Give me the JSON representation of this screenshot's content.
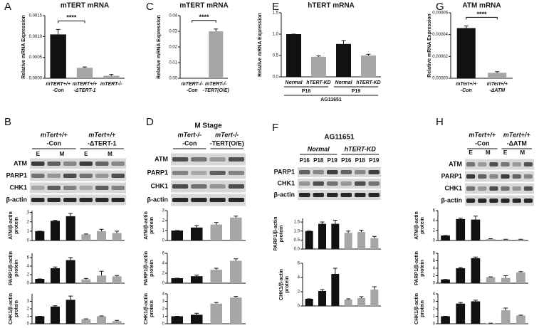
{
  "chart_data": [
    {
      "letter": "A",
      "type": "bar",
      "title": "mTERT mRNA",
      "ylabel": [
        "Relative mRNA Expression"
      ],
      "categories": [
        [
          "mTERT+/+",
          "-Con"
        ],
        [
          "mTERT+/+",
          "-ΔTERT-1"
        ],
        [
          "mTERT-/-"
        ]
      ],
      "values": [
        0.00105,
        0.00025,
        6e-05
      ],
      "errors": [
        0.00012,
        2e-05,
        3e-05
      ],
      "colors": [
        "#111111",
        "#a6a6a6",
        "#a6a6a6"
      ],
      "ylim": [
        0,
        0.0015
      ],
      "yticks": [
        {
          "value": 0,
          "label": "0.0000"
        },
        {
          "value": 0.0005,
          "label": "0.0005"
        },
        {
          "value": 0.001,
          "label": "0.0010"
        },
        {
          "value": 0.0015,
          "label": "0.0015"
        }
      ],
      "annotation": "****"
    },
    {
      "letter": "C",
      "type": "bar",
      "title": "mTERT mRNA",
      "ylabel": [
        "Relative mRNA Expression"
      ],
      "categories": [
        [
          "mTERT-/-",
          "-Con"
        ],
        [
          "mTERT-/-",
          "-TERT(O/E)"
        ]
      ],
      "values": [
        0,
        0.03
      ],
      "errors": [
        0,
        0.0015
      ],
      "colors": [
        "#111111",
        "#a6a6a6"
      ],
      "ylim": [
        0,
        0.04
      ],
      "yticks": [
        {
          "value": 0,
          "label": "0.00"
        },
        {
          "value": 0.01,
          "label": "0.01"
        },
        {
          "value": 0.02,
          "label": "0.02"
        },
        {
          "value": 0.03,
          "label": "0.03"
        },
        {
          "value": 0.04,
          "label": "0.04"
        }
      ],
      "annotation": "****"
    },
    {
      "letter": "E",
      "type": "bar",
      "title": "hTERT mRNA",
      "ylabel": [
        "Relative mRNA Expression"
      ],
      "categories": [
        [
          "Normal"
        ],
        [
          "hTERT-KD"
        ],
        [
          "Normal"
        ],
        [
          "hTERT-KD"
        ]
      ],
      "groups": [
        "P16",
        "P19"
      ],
      "group_title": "AG11651",
      "values": [
        1.0,
        0.47,
        0.77,
        0.5
      ],
      "errors": [
        0,
        0.02,
        0.08,
        0.03
      ],
      "colors": [
        "#111111",
        "#a6a6a6",
        "#111111",
        "#a6a6a6"
      ],
      "ylim": [
        0,
        1.5
      ],
      "yticks": [
        {
          "value": 0,
          "label": "0.0"
        },
        {
          "value": 0.5,
          "label": "0.5"
        },
        {
          "value": 1,
          "label": "1.0"
        },
        {
          "value": 1.5,
          "label": "1.5"
        }
      ]
    },
    {
      "letter": "G",
      "type": "bar",
      "title": "ATM mRNA",
      "ylabel": [
        "Relative mRNA Expression"
      ],
      "categories": [
        [
          "mTert+/+",
          "-Con"
        ],
        [
          "mTert+/+",
          "-ΔATM"
        ]
      ],
      "values": [
        4.6e-05,
        5e-06
      ],
      "errors": [
        2e-06,
        1e-06
      ],
      "colors": [
        "#111111",
        "#a6a6a6"
      ],
      "ylim": [
        0,
        6e-05
      ],
      "yticks": [
        {
          "value": 0,
          "label": "0.00000"
        },
        {
          "value": 2e-05,
          "label": "0.00002"
        },
        {
          "value": 4e-05,
          "label": "0.00004"
        },
        {
          "value": 6e-05,
          "label": "0.00006"
        }
      ],
      "annotation": "****"
    },
    {
      "type": "bar",
      "ylabel": [
        "ATM/β-actin",
        "protein"
      ],
      "values": [
        1,
        2.1,
        2.6,
        0.65,
        1.0,
        0.8
      ],
      "errors": [
        0,
        0.05,
        0.3,
        0.05,
        0.2,
        0.2
      ],
      "colors": [
        "#111111",
        "#111111",
        "#111111",
        "#a6a6a6",
        "#a6a6a6",
        "#a6a6a6"
      ],
      "ylim": [
        0,
        3.2
      ],
      "yticks": [
        0,
        1,
        2,
        3
      ]
    },
    {
      "type": "bar",
      "ylabel": [
        "PARP1/β-actin",
        "protein"
      ],
      "values": [
        1,
        3.5,
        5.4,
        0.9,
        1.8,
        1.6
      ],
      "errors": [
        0,
        0.3,
        0.6,
        0.2,
        1.0,
        0.2
      ],
      "colors": [
        "#111111",
        "#111111",
        "#111111",
        "#a6a6a6",
        "#a6a6a6",
        "#a6a6a6"
      ],
      "ylim": [
        0,
        7
      ],
      "yticks": [
        0,
        2,
        4,
        6
      ]
    },
    {
      "type": "bar",
      "ylabel": [
        "CHK1/β-actin",
        "protein"
      ],
      "values": [
        1,
        2.3,
        3.2,
        0.6,
        1.0,
        0.35
      ],
      "errors": [
        0,
        0.1,
        0.5,
        0.05,
        0.05,
        0.1
      ],
      "colors": [
        "#111111",
        "#111111",
        "#111111",
        "#a6a6a6",
        "#a6a6a6",
        "#a6a6a6"
      ],
      "ylim": [
        0,
        4
      ],
      "yticks": [
        0,
        1,
        2,
        3
      ]
    },
    {
      "type": "bar",
      "ylabel": [
        "ATM/β-actin",
        "protein"
      ],
      "values": [
        1,
        1.3,
        1.6,
        2.3
      ],
      "errors": [
        0,
        0.2,
        0.2,
        0.15
      ],
      "colors": [
        "#111111",
        "#111111",
        "#a6a6a6",
        "#a6a6a6"
      ],
      "ylim": [
        0,
        3
      ],
      "yticks": [
        0,
        1,
        2,
        3
      ]
    },
    {
      "type": "bar",
      "ylabel": [
        "PARP1/β-actin",
        "protein"
      ],
      "values": [
        1,
        1.4,
        2.7,
        4.5
      ],
      "errors": [
        0,
        0.2,
        0.3,
        0.4
      ],
      "colors": [
        "#111111",
        "#111111",
        "#a6a6a6",
        "#a6a6a6"
      ],
      "ylim": [
        0,
        6
      ],
      "yticks": [
        0,
        2,
        4,
        6
      ]
    },
    {
      "type": "bar",
      "ylabel": [
        "CHK1/β-actin",
        "protein"
      ],
      "values": [
        1,
        1.2,
        2.7,
        3.5
      ],
      "errors": [
        0,
        0.2,
        0.15,
        0.15
      ],
      "colors": [
        "#111111",
        "#111111",
        "#a6a6a6",
        "#a6a6a6"
      ],
      "ylim": [
        0,
        4
      ],
      "yticks": [
        0,
        1,
        2,
        3,
        4
      ]
    },
    {
      "type": "bar",
      "ylabel": [
        "PARP1/β-actin",
        "protein"
      ],
      "values": [
        1,
        1.4,
        1.4,
        0.9,
        0.95,
        0.6
      ],
      "errors": [
        0,
        0.1,
        0.2,
        0.1,
        0.1,
        0.1
      ],
      "colors": [
        "#111111",
        "#111111",
        "#111111",
        "#a6a6a6",
        "#a6a6a6",
        "#a6a6a6"
      ],
      "ylim": [
        0,
        1.7
      ],
      "yticks": [
        {
          "value": 0,
          "label": "0.0"
        },
        {
          "value": 0.5,
          "label": "0.5"
        },
        {
          "value": 1,
          "label": "1.0"
        },
        {
          "value": 1.5,
          "label": "1.5"
        }
      ]
    },
    {
      "type": "bar",
      "ylabel": [
        "CHK1/β-actin",
        "protein"
      ],
      "values": [
        1,
        2.1,
        4.5,
        0.9,
        1.1,
        2.3
      ],
      "errors": [
        0,
        0.2,
        0.8,
        0.1,
        0.2,
        0.4
      ],
      "colors": [
        "#111111",
        "#111111",
        "#111111",
        "#a6a6a6",
        "#a6a6a6",
        "#a6a6a6"
      ],
      "ylim": [
        0,
        6
      ],
      "yticks": [
        0,
        2,
        4,
        6
      ]
    },
    {
      "type": "bar",
      "ylabel": [
        "ATM/β-actin",
        "protein"
      ],
      "values": [
        1,
        4.3,
        4.2,
        0.3,
        0.2,
        0.2
      ],
      "errors": [
        0,
        0.2,
        0.7,
        0.05,
        0.05,
        0.05
      ],
      "colors": [
        "#111111",
        "#111111",
        "#111111",
        "#a6a6a6",
        "#a6a6a6",
        "#a6a6a6"
      ],
      "ylim": [
        0,
        6
      ],
      "yticks": [
        0,
        2,
        4,
        6
      ]
    },
    {
      "type": "bar",
      "ylabel": [
        "PARP1/β-actin",
        "protein"
      ],
      "values": [
        1,
        4,
        6.7,
        1.6,
        1.4,
        2.9
      ],
      "errors": [
        0,
        0.2,
        0.3,
        0.1,
        0.6,
        0.2
      ],
      "colors": [
        "#111111",
        "#111111",
        "#111111",
        "#a6a6a6",
        "#a6a6a6",
        "#a6a6a6"
      ],
      "ylim": [
        0,
        8
      ],
      "yticks": [
        0,
        2,
        4,
        6,
        8
      ]
    },
    {
      "type": "bar",
      "ylabel": [
        "CHK1/β-actin",
        "protein"
      ],
      "values": [
        1,
        2.7,
        3,
        0.05,
        1.8,
        1.1
      ],
      "errors": [
        0,
        0.15,
        0.15,
        0.02,
        0.3,
        0.05
      ],
      "colors": [
        "#111111",
        "#111111",
        "#111111",
        "#a6a6a6",
        "#a6a6a6",
        "#a6a6a6"
      ],
      "ylim": [
        0,
        4
      ],
      "yticks": [
        0,
        1,
        2,
        3,
        4
      ]
    }
  ],
  "blots": [
    {
      "letter": "B",
      "groups": [
        [
          "mTert+/+",
          "-Con"
        ],
        [
          "mTert+/+",
          "-ΔTERT-1"
        ]
      ],
      "lanes": [
        "E",
        "M",
        "E",
        "M"
      ],
      "rows": [
        "ATM",
        "PARP1",
        "CHK1",
        "β-actin"
      ]
    },
    {
      "letter": "D",
      "title": "M Stage",
      "groups": [
        [
          "mTert-/-",
          "-Con"
        ],
        [
          "mTert-/-",
          "-TERT(O/E)"
        ]
      ],
      "rows": [
        "ATM",
        "PARP1",
        "CHK1",
        "β-actin"
      ]
    },
    {
      "letter": "F",
      "title": "AG11651",
      "groups": [
        [
          "Normal"
        ],
        [
          "hTERT-KD"
        ]
      ],
      "lanes": [
        "P16",
        "P18",
        "P19",
        "P16",
        "P18",
        "P19"
      ],
      "rows": [
        "PARP1",
        "CHK1",
        "β-actin"
      ]
    },
    {
      "letter": "H",
      "groups": [
        [
          "mTert+/+",
          "-Con"
        ],
        [
          "mTert+/+",
          "-ΔATM"
        ]
      ],
      "lanes": [
        "E",
        "M",
        "E",
        "M"
      ],
      "rows": [
        "ATM",
        "PARP1",
        "CHK1",
        "β-actin"
      ]
    }
  ]
}
